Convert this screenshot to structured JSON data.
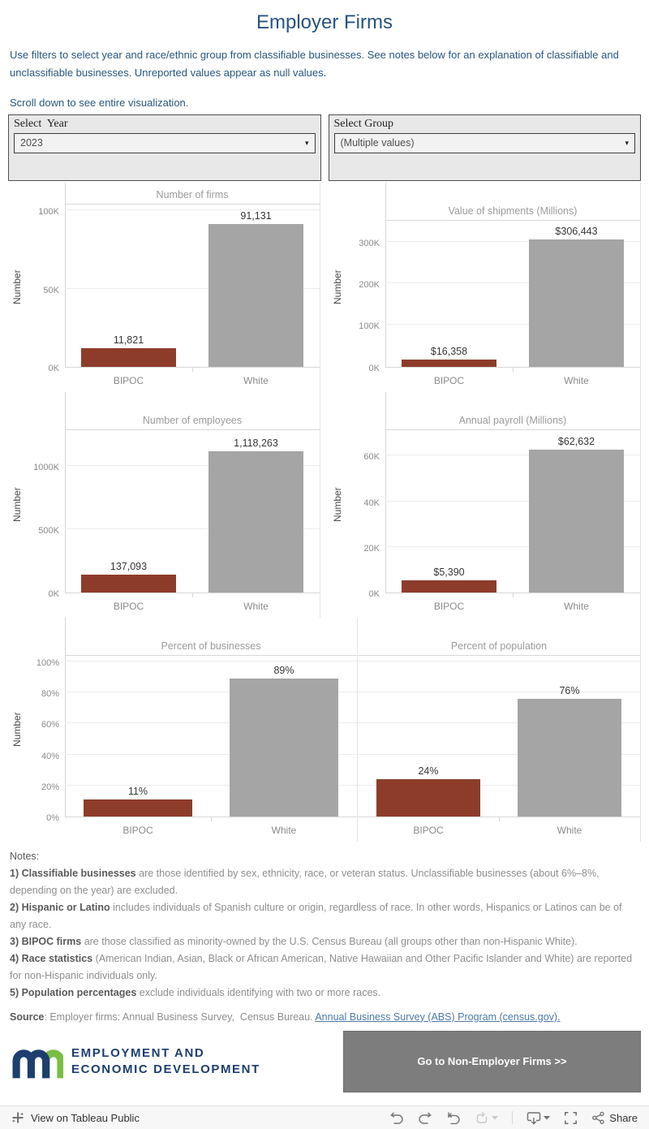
{
  "header": {
    "title": "Employer Firms",
    "intro": "Use filters to select year and race/ethnic group from classifiable businesses. See notes below for an explanation of classifiable and unclassifiable businesses. Unreported values appear as null values.",
    "scroll_note": "Scroll down to see entire visualization."
  },
  "filters": [
    {
      "label": "Select  Year",
      "value": "2023"
    },
    {
      "label": "Select Group",
      "value": "(Multiple values)"
    }
  ],
  "chart_data": [
    {
      "type": "bar",
      "title": "Number of firms",
      "ylabel": "Number",
      "categories": [
        "BIPOC",
        "White"
      ],
      "values": [
        11821,
        91131
      ],
      "value_labels": [
        "11,821",
        "91,131"
      ],
      "ticks": [
        {
          "value": 0,
          "label": "0K"
        },
        {
          "value": 50000,
          "label": "50K"
        },
        {
          "value": 100000,
          "label": "100K"
        }
      ],
      "ylim": [
        0,
        105000
      ],
      "bar_colors": [
        "#8E3C2A",
        "#A5A5A5"
      ],
      "grid": true
    },
    {
      "type": "bar",
      "title": "Value of shipments (Millions)",
      "ylabel": "Number",
      "categories": [
        "BIPOC",
        "White"
      ],
      "values": [
        16358,
        306443
      ],
      "value_labels": [
        "$16,358",
        "$306,443"
      ],
      "ticks": [
        {
          "value": 0,
          "label": "0K"
        },
        {
          "value": 100000,
          "label": "100K"
        },
        {
          "value": 200000,
          "label": "200K"
        },
        {
          "value": 300000,
          "label": "300K"
        }
      ],
      "ylim": [
        0,
        355000
      ],
      "bar_colors": [
        "#8E3C2A",
        "#A5A5A5"
      ],
      "grid": true
    },
    {
      "type": "bar",
      "title": "Number of employees",
      "ylabel": "Number",
      "categories": [
        "BIPOC",
        "White"
      ],
      "values": [
        137093,
        1118263
      ],
      "value_labels": [
        "137,093",
        "1,118,263"
      ],
      "ticks": [
        {
          "value": 0,
          "label": "0K"
        },
        {
          "value": 500000,
          "label": "500K"
        },
        {
          "value": 1000000,
          "label": "1000K"
        }
      ],
      "ylim": [
        0,
        1300000
      ],
      "bar_colors": [
        "#8E3C2A",
        "#A5A5A5"
      ],
      "grid": true
    },
    {
      "type": "bar",
      "title": "Annual payroll (Millions)",
      "ylabel": "Number",
      "categories": [
        "BIPOC",
        "White"
      ],
      "values": [
        5390,
        62632
      ],
      "value_labels": [
        "$5,390",
        "$62,632"
      ],
      "ticks": [
        {
          "value": 0,
          "label": "0K"
        },
        {
          "value": 20000,
          "label": "20K"
        },
        {
          "value": 40000,
          "label": "40K"
        },
        {
          "value": 60000,
          "label": "60K"
        }
      ],
      "ylim": [
        0,
        72000
      ],
      "bar_colors": [
        "#8E3C2A",
        "#A5A5A5"
      ],
      "grid": true
    },
    {
      "type": "bar",
      "title": "Percent of businesses",
      "ylabel": "Number",
      "categories": [
        "BIPOC",
        "White"
      ],
      "values": [
        11,
        89
      ],
      "value_labels": [
        "11%",
        "89%"
      ],
      "ticks": [
        {
          "value": 0,
          "label": "0%"
        },
        {
          "value": 20,
          "label": "20%"
        },
        {
          "value": 40,
          "label": "40%"
        },
        {
          "value": 60,
          "label": "60%"
        },
        {
          "value": 80,
          "label": "80%"
        },
        {
          "value": 100,
          "label": "100%"
        }
      ],
      "ylim": [
        0,
        105
      ],
      "bar_colors": [
        "#8E3C2A",
        "#A5A5A5"
      ],
      "grid": true
    },
    {
      "type": "bar",
      "title": "Percent of population",
      "ylabel": "",
      "categories": [
        "BIPOC",
        "White"
      ],
      "values": [
        24,
        76
      ],
      "value_labels": [
        "24%",
        "76%"
      ],
      "ticks": [
        {
          "value": 20,
          "label": ""
        },
        {
          "value": 40,
          "label": ""
        },
        {
          "value": 60,
          "label": ""
        },
        {
          "value": 80,
          "label": ""
        },
        {
          "value": 100,
          "label": ""
        }
      ],
      "ylim": [
        0,
        105
      ],
      "bar_colors": [
        "#8E3C2A",
        "#A5A5A5"
      ],
      "grid": true
    }
  ],
  "notes": {
    "heading": "Notes:",
    "items": [
      [
        {
          "bold": true,
          "text": "1) Classifiable businesses"
        },
        {
          "bold": false,
          "text": " are those identified by sex, ethnicity, race, or veteran status. Unclassifiable businesses (about 6%–8%, depending on the year) are excluded."
        }
      ],
      [
        {
          "bold": true,
          "text": "2) Hispanic or Latino"
        },
        {
          "bold": false,
          "text": " includes individuals of Spanish culture or origin, regardless of race. In other words, Hispanics or Latinos can be of any race."
        }
      ],
      [
        {
          "bold": true,
          "text": "3) BIPOC firms"
        },
        {
          "bold": false,
          "text": " are those classified as minority-owned by the U.S. Census Bureau (all groups other than non-Hispanic White)."
        }
      ],
      [
        {
          "bold": true,
          "text": "4) Race statistics"
        },
        {
          "bold": false,
          "text": " (American Indian, Asian, Black or African American, Native Hawaiian and Other Pacific Islander and White) are reported for non-Hispanic individuals only."
        }
      ],
      [
        {
          "bold": true,
          "text": "5) Population percentages"
        },
        {
          "bold": false,
          "text": " exclude individuals identifying with two or more races."
        }
      ]
    ]
  },
  "source": {
    "label": "Source",
    "text": ": Employer firms: Annual Business Survey,  Census Bureau. ",
    "link": "Annual Business Survey (ABS) Program (census.gov)."
  },
  "footer": {
    "logo_line1": "EMPLOYMENT AND",
    "logo_line2": "ECONOMIC DEVELOPMENT",
    "button_label": "Go to Non-Employer Firms >>"
  },
  "toolbar": {
    "view_label": "View on Tableau Public",
    "share_label": "Share"
  },
  "colors": {
    "heading_blue": "#28537E",
    "bipoc_bar": "#8E3C2A",
    "white_bar": "#A5A5A5",
    "deed_navy": "#1D3E6E",
    "deed_green": "#78BE43",
    "button_gray": "#7D7D7D"
  }
}
